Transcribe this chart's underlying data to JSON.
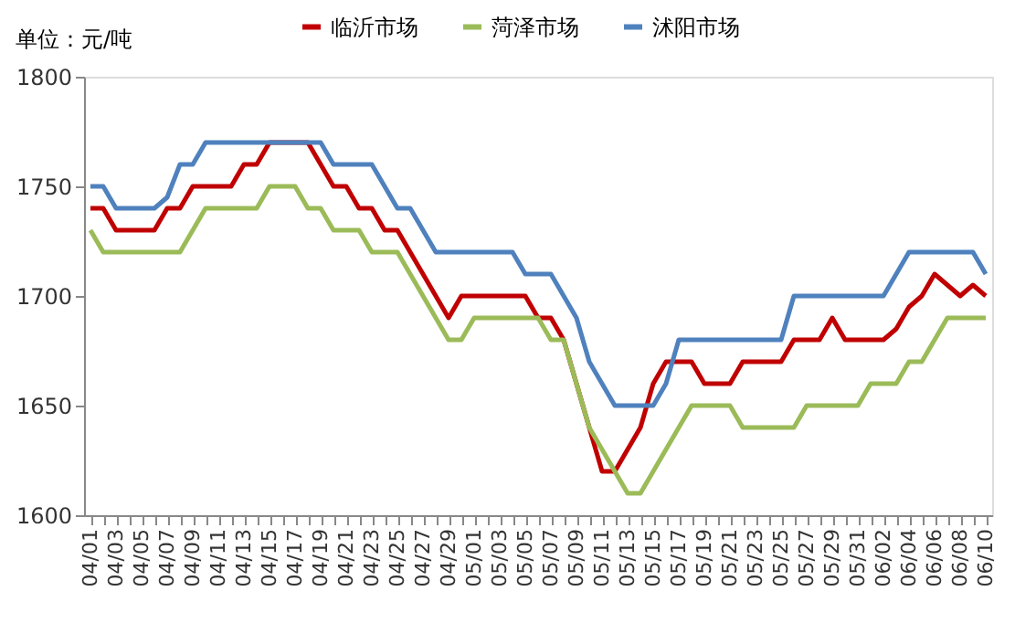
{
  "chart_data": {
    "type": "line",
    "ylabel": "单位：元/吨",
    "categories": [
      "04/01",
      null,
      "04/03",
      null,
      "04/05",
      null,
      "04/07",
      null,
      "04/09",
      null,
      "04/11",
      null,
      "04/13",
      null,
      "04/15",
      null,
      "04/17",
      null,
      "04/19",
      null,
      "04/21",
      null,
      "04/23",
      null,
      "04/25",
      null,
      "04/27",
      null,
      "04/29",
      null,
      "05/01",
      null,
      "05/03",
      null,
      "05/05",
      null,
      "05/07",
      null,
      "05/09",
      null,
      "05/11",
      null,
      "05/13",
      null,
      "05/15",
      null,
      "05/17",
      null,
      "05/19",
      null,
      "05/21",
      null,
      "05/23",
      null,
      "05/25",
      null,
      "05/27",
      null,
      "05/29",
      null,
      "05/31",
      null,
      "06/02",
      null,
      "06/04",
      null,
      "06/06",
      null,
      "06/08",
      null,
      "06/10"
    ],
    "series": [
      {
        "name": "临沂市场",
        "color": "#c00000",
        "values": [
          1740,
          1740,
          1730,
          1730,
          1730,
          1730,
          1740,
          1740,
          1750,
          1750,
          1750,
          1750,
          1760,
          1760,
          1770,
          1770,
          1770,
          1770,
          1760,
          1750,
          1750,
          1740,
          1740,
          1730,
          1730,
          1720,
          1710,
          1700,
          1690,
          1700,
          1700,
          1700,
          1700,
          1700,
          1700,
          1690,
          1690,
          1680,
          1660,
          1640,
          1620,
          1620,
          1630,
          1640,
          1660,
          1670,
          1670,
          1670,
          1660,
          1660,
          1660,
          1670,
          1670,
          1670,
          1670,
          1680,
          1680,
          1680,
          1690,
          1680,
          1680,
          1680,
          1680,
          1685,
          1695,
          1700,
          1710,
          1705,
          1700,
          1705,
          1700
        ]
      },
      {
        "name": "菏泽市场",
        "color": "#9bbb59",
        "values": [
          1730,
          1720,
          1720,
          1720,
          1720,
          1720,
          1720,
          1720,
          1730,
          1740,
          1740,
          1740,
          1740,
          1740,
          1750,
          1750,
          1750,
          1740,
          1740,
          1730,
          1730,
          1730,
          1720,
          1720,
          1720,
          1710,
          1700,
          1690,
          1680,
          1680,
          1690,
          1690,
          1690,
          1690,
          1690,
          1690,
          1680,
          1680,
          1660,
          1640,
          1630,
          1620,
          1610,
          1610,
          1620,
          1630,
          1640,
          1650,
          1650,
          1650,
          1650,
          1640,
          1640,
          1640,
          1640,
          1640,
          1650,
          1650,
          1650,
          1650,
          1650,
          1660,
          1660,
          1660,
          1670,
          1670,
          1680,
          1690,
          1690,
          1690,
          1690
        ]
      },
      {
        "name": "沭阳市场",
        "color": "#4f81bd",
        "values": [
          1750,
          1750,
          1740,
          1740,
          1740,
          1740,
          1745,
          1760,
          1760,
          1770,
          1770,
          1770,
          1770,
          1770,
          1770,
          1770,
          1770,
          1770,
          1770,
          1760,
          1760,
          1760,
          1760,
          1750,
          1740,
          1740,
          1730,
          1720,
          1720,
          1720,
          1720,
          1720,
          1720,
          1720,
          1710,
          1710,
          1710,
          1700,
          1690,
          1670,
          1660,
          1650,
          1650,
          1650,
          1650,
          1660,
          1680,
          1680,
          1680,
          1680,
          1680,
          1680,
          1680,
          1680,
          1680,
          1700,
          1700,
          1700,
          1700,
          1700,
          1700,
          1700,
          1700,
          1710,
          1720,
          1720,
          1720,
          1720,
          1720,
          1720,
          1710
        ]
      }
    ],
    "ylim": [
      1600,
      1800
    ],
    "yticks": [
      1600,
      1650,
      1700,
      1750,
      1800
    ],
    "grid": false,
    "legend": "top",
    "marker": "none",
    "line_style": "solid"
  }
}
